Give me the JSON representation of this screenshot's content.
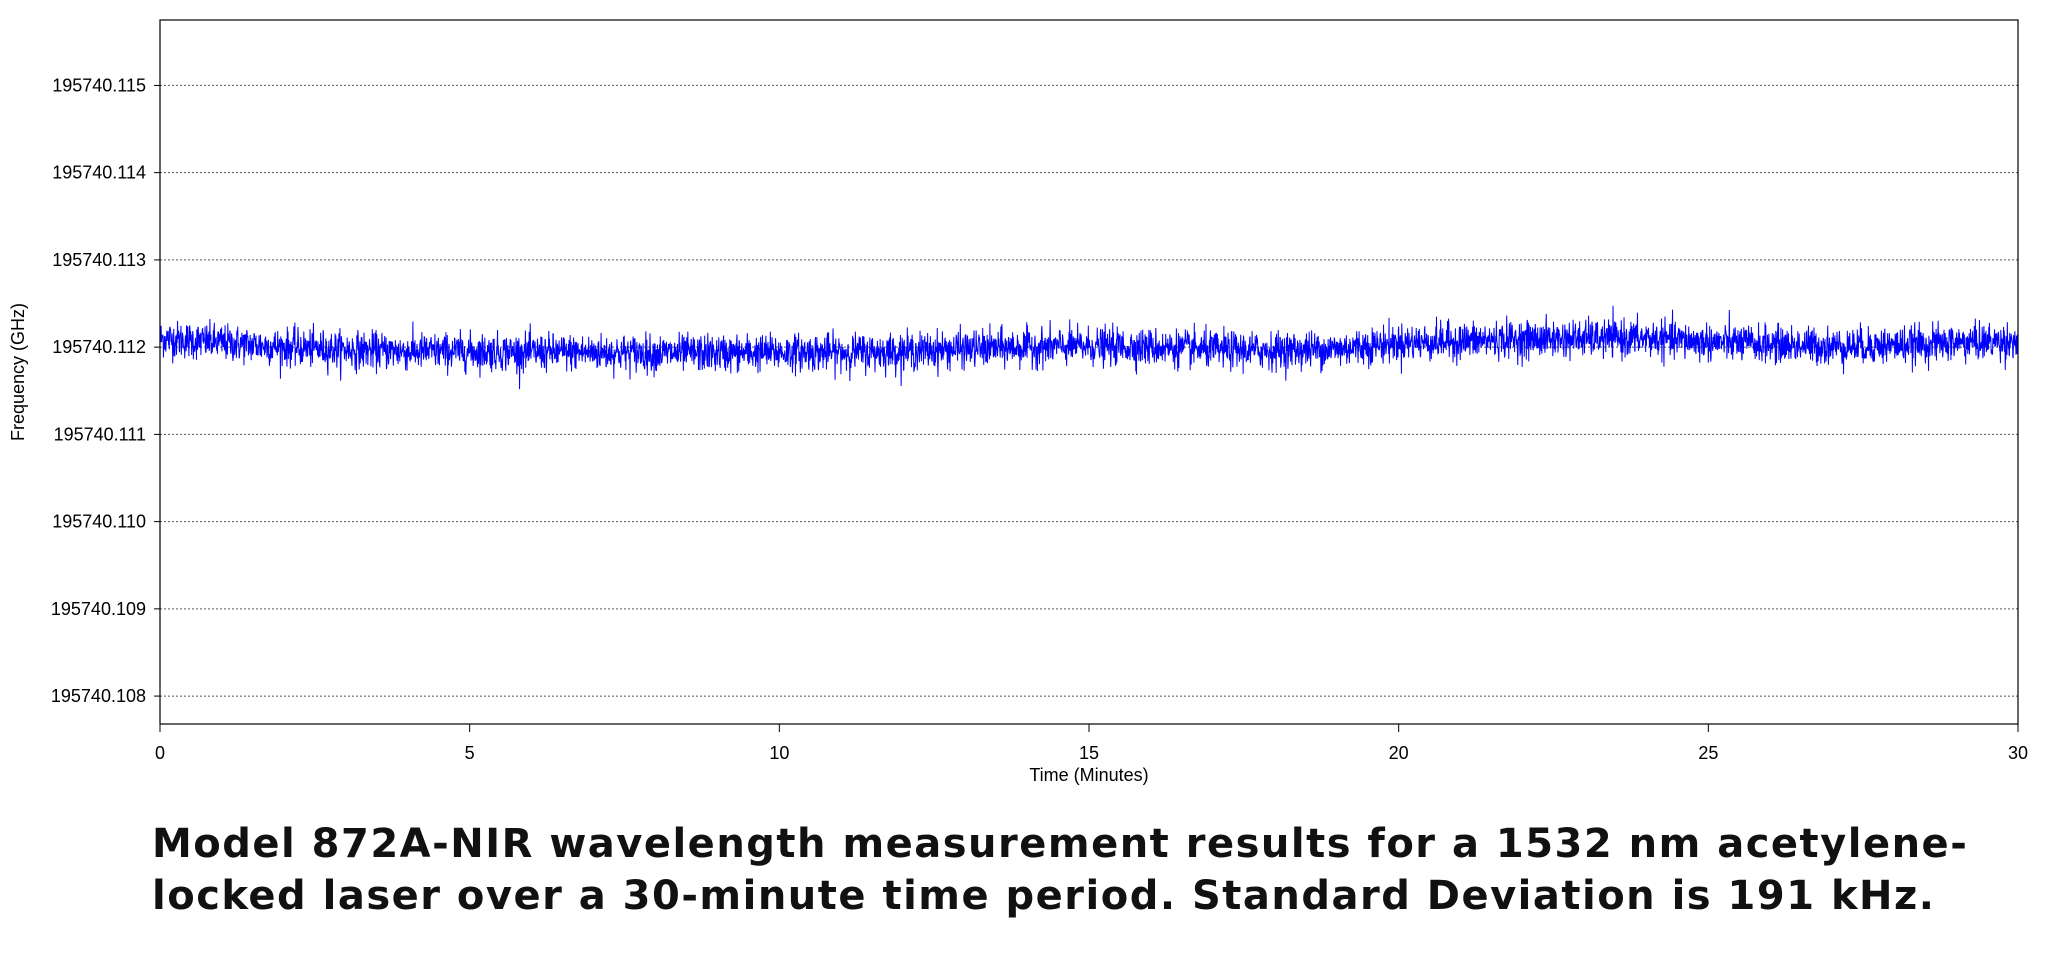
{
  "caption": "Model 872A-NIR wavelength measurement results for a 1532 nm acetylene-locked laser over a 30-minute time period. Standard Deviation is 191 kHz.",
  "chart_data": {
    "type": "line",
    "title": "",
    "xlabel": "Time (Minutes)",
    "ylabel": "Frequency (GHz)",
    "xlim": [
      0,
      30
    ],
    "ylim": [
      195740.10768,
      195740.11575
    ],
    "x_ticks": [
      "0",
      "5",
      "10",
      "15",
      "20",
      "25",
      "30"
    ],
    "y_ticks": [
      "195740.108",
      "195740.109",
      "195740.110",
      "195740.111",
      "195740.112",
      "195740.113",
      "195740.114",
      "195740.115"
    ],
    "grid": "horizontal dotted",
    "color": "#0000ff",
    "series": [
      {
        "x": [
          0,
          1,
          2,
          3,
          4,
          5,
          6,
          7,
          8,
          9,
          10,
          11,
          12,
          13,
          14,
          15,
          16,
          17,
          18,
          19,
          20,
          21,
          22,
          23,
          24,
          25,
          26,
          27,
          28,
          29,
          30
        ],
        "values": [
          195740.1121,
          195740.11205,
          195740.112,
          195740.11197,
          195740.11195,
          195740.11195,
          195740.11194,
          195740.11194,
          195740.11193,
          195740.11193,
          195740.11194,
          195740.11194,
          195740.11195,
          195740.11198,
          195740.112,
          195740.11201,
          195740.112,
          195740.11197,
          195740.11196,
          195740.11198,
          195740.11205,
          195740.11207,
          195740.11209,
          195740.1121,
          195740.1121,
          195740.11206,
          195740.11203,
          195740.11201,
          195740.11202,
          195740.11205,
          195740.11207
        ],
        "noise_std": 0.000191
      }
    ]
  }
}
